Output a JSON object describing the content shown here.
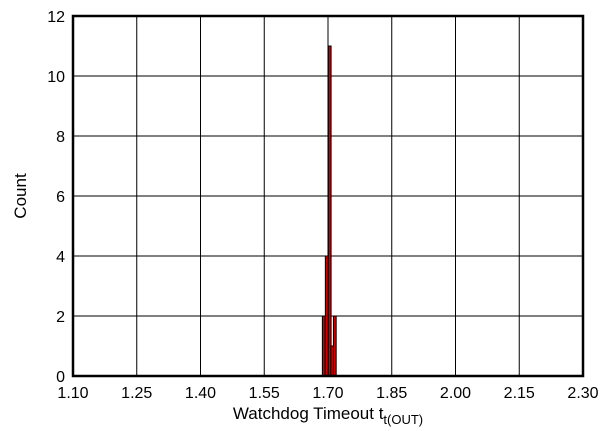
{
  "chart_data": {
    "type": "bar",
    "xlabel": "Watchdog Timeout t",
    "xlabel_sub": "t(OUT)",
    "ylabel": "Count",
    "xlim": [
      1.1,
      2.3
    ],
    "ylim": [
      0,
      12
    ],
    "x_tick_labels": [
      "1.10",
      "1.25",
      "1.40",
      "1.55",
      "1.70",
      "1.85",
      "2.00",
      "2.15",
      "2.30"
    ],
    "y_tick_labels": [
      "0",
      "2",
      "4",
      "6",
      "8",
      "10",
      "12"
    ],
    "x_ticks": [
      1.1,
      1.25,
      1.4,
      1.55,
      1.7,
      1.85,
      2.0,
      2.15,
      2.3
    ],
    "y_ticks": [
      0,
      2,
      4,
      6,
      8,
      10,
      12
    ],
    "grid": true,
    "bin_width": 0.0065,
    "bins": [
      {
        "x": 1.69,
        "count": 2
      },
      {
        "x": 1.697,
        "count": 4
      },
      {
        "x": 1.704,
        "count": 11
      },
      {
        "x": 1.71,
        "count": 1
      },
      {
        "x": 1.716,
        "count": 2
      }
    ],
    "colors": {
      "bar_fill": "#cc0000",
      "bar_edge": "#000000",
      "grid": "#000000",
      "axis": "#000000"
    }
  }
}
